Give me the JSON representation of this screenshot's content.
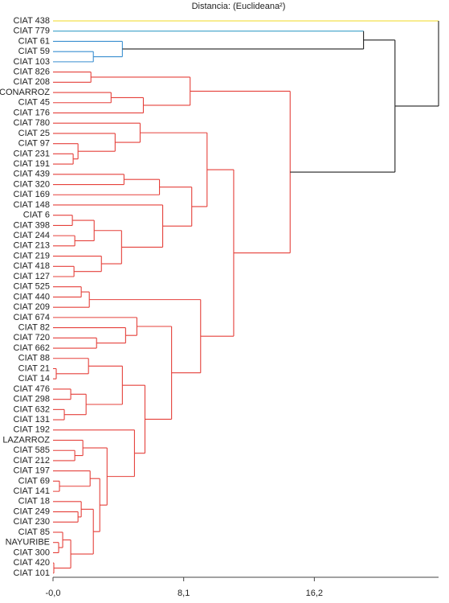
{
  "chart_data": {
    "type": "dendrogram",
    "title": "Distancia: (Euclideana²)",
    "leaves": [
      "CIAT 438",
      "CIAT 779",
      "CIAT 61",
      "CIAT 59",
      "CIAT 103",
      "CIAT 826",
      "CIAT 208",
      "CONARROZ",
      "CIAT 45",
      "CIAT 176",
      "CIAT 780",
      "CIAT 25",
      "CIAT 97",
      "CIAT 231",
      "CIAT 191",
      "CIAT 439",
      "CIAT 320",
      "CIAT 169",
      "CIAT 148",
      "CIAT 6",
      "CIAT 398",
      "CIAT 244",
      "CIAT 213",
      "CIAT 219",
      "CIAT 418",
      "CIAT 127",
      "CIAT 525",
      "CIAT 440",
      "CIAT 209",
      "CIAT 674",
      "CIAT 82",
      "CIAT 720",
      "CIAT 662",
      "CIAT 88",
      "CIAT 21",
      "CIAT 14",
      "CIAT 476",
      "CIAT 298",
      "CIAT 632",
      "CIAT 131",
      "CIAT 192",
      "LAZARROZ",
      "CIAT 585",
      "CIAT 212",
      "CIAT 197",
      "CIAT 69",
      "CIAT 141",
      "CIAT 18",
      "CIAT 249",
      "CIAT 230",
      "CIAT 85",
      "NAYURIBE",
      "CIAT 300",
      "CIAT 420",
      "CIAT 101"
    ],
    "merges": [
      {
        "left": 3,
        "right": 4,
        "height": 2.5,
        "color": "#3a8fd0"
      },
      {
        "left": 2,
        "right": 55,
        "height": 4.3,
        "color": "#3a8fd0"
      },
      {
        "left": 1,
        "right": 56,
        "height": 19.25,
        "color": "#222222",
        "left_color": "#3aa0c8"
      },
      {
        "left": 5,
        "right": 6,
        "height": 2.35,
        "color": "#e5413b"
      },
      {
        "left": 7,
        "right": 8,
        "height": 3.6,
        "color": "#e5413b"
      },
      {
        "left": 59,
        "right": 9,
        "height": 5.6,
        "color": "#e5413b"
      },
      {
        "left": 58,
        "right": 60,
        "height": 8.5,
        "color": "#e5413b"
      },
      {
        "left": 13,
        "right": 14,
        "height": 1.25,
        "color": "#e5413b"
      },
      {
        "left": 12,
        "right": 62,
        "height": 1.55,
        "color": "#e5413b"
      },
      {
        "left": 11,
        "right": 63,
        "height": 3.85,
        "color": "#e5413b"
      },
      {
        "left": 10,
        "right": 64,
        "height": 5.4,
        "color": "#e5413b"
      },
      {
        "left": 15,
        "right": 16,
        "height": 4.4,
        "color": "#e5413b"
      },
      {
        "left": 66,
        "right": 17,
        "height": 6.6,
        "color": "#e5413b"
      },
      {
        "left": 19,
        "right": 20,
        "height": 1.2,
        "color": "#e5413b"
      },
      {
        "left": 21,
        "right": 22,
        "height": 1.35,
        "color": "#e5413b"
      },
      {
        "left": 68,
        "right": 69,
        "height": 2.55,
        "color": "#e5413b"
      },
      {
        "left": 24,
        "right": 25,
        "height": 1.3,
        "color": "#e5413b"
      },
      {
        "left": 23,
        "right": 71,
        "height": 3.0,
        "color": "#e5413b"
      },
      {
        "left": 70,
        "right": 72,
        "height": 4.25,
        "color": "#e5413b"
      },
      {
        "left": 18,
        "right": 73,
        "height": 6.8,
        "color": "#e5413b"
      },
      {
        "left": 67,
        "right": 74,
        "height": 8.6,
        "color": "#e5413b"
      },
      {
        "left": 65,
        "right": 75,
        "height": 9.55,
        "color": "#e5413b"
      },
      {
        "left": 26,
        "right": 27,
        "height": 1.75,
        "color": "#e5413b"
      },
      {
        "left": 77,
        "right": 28,
        "height": 2.25,
        "color": "#e5413b"
      },
      {
        "left": 31,
        "right": 32,
        "height": 2.7,
        "color": "#e5413b"
      },
      {
        "left": 30,
        "right": 79,
        "height": 4.5,
        "color": "#e5413b"
      },
      {
        "left": 29,
        "right": 80,
        "height": 5.2,
        "color": "#e5413b"
      },
      {
        "left": 34,
        "right": 35,
        "height": 0.2,
        "color": "#e5413b"
      },
      {
        "left": 33,
        "right": 82,
        "height": 2.2,
        "color": "#e5413b"
      },
      {
        "left": 36,
        "right": 37,
        "height": 1.1,
        "color": "#e5413b"
      },
      {
        "left": 38,
        "right": 39,
        "height": 0.7,
        "color": "#e5413b"
      },
      {
        "left": 84,
        "right": 85,
        "height": 2.05,
        "color": "#e5413b"
      },
      {
        "left": 83,
        "right": 86,
        "height": 4.3,
        "color": "#e5413b"
      },
      {
        "left": 42,
        "right": 43,
        "height": 1.35,
        "color": "#e5413b"
      },
      {
        "left": 41,
        "right": 88,
        "height": 1.85,
        "color": "#e5413b"
      },
      {
        "left": 45,
        "right": 46,
        "height": 0.4,
        "color": "#e5413b"
      },
      {
        "left": 44,
        "right": 90,
        "height": 2.3,
        "color": "#e5413b"
      },
      {
        "left": 48,
        "right": 49,
        "height": 1.55,
        "color": "#e5413b"
      },
      {
        "left": 47,
        "right": 92,
        "height": 1.75,
        "color": "#e5413b"
      },
      {
        "left": 51,
        "right": 52,
        "height": 0.35,
        "color": "#e5413b"
      },
      {
        "left": 50,
        "right": 94,
        "height": 0.6,
        "color": "#e5413b"
      },
      {
        "left": 53,
        "right": 54,
        "height": 0.05,
        "color": "#e5413b"
      },
      {
        "left": 95,
        "right": 96,
        "height": 1.1,
        "color": "#e5413b"
      },
      {
        "left": 93,
        "right": 97,
        "height": 2.5,
        "color": "#e5413b"
      },
      {
        "left": 91,
        "right": 98,
        "height": 2.9,
        "color": "#e5413b"
      },
      {
        "left": 89,
        "right": 99,
        "height": 3.35,
        "color": "#e5413b"
      },
      {
        "left": 40,
        "right": 100,
        "height": 5.05,
        "color": "#e5413b"
      },
      {
        "left": 87,
        "right": 101,
        "height": 5.7,
        "color": "#e5413b"
      },
      {
        "left": 81,
        "right": 102,
        "height": 7.35,
        "color": "#e5413b"
      },
      {
        "left": 78,
        "right": 103,
        "height": 9.15,
        "color": "#e5413b"
      },
      {
        "left": 76,
        "right": 104,
        "height": 11.2,
        "color": "#e5413b"
      },
      {
        "left": 61,
        "right": 105,
        "height": 14.7,
        "color": "#e5413b"
      },
      {
        "left": 57,
        "right": 106,
        "height": 21.2,
        "color": "#222222"
      },
      {
        "left": 0,
        "right": 107,
        "height": 23.9,
        "color": "#222222",
        "left_color": "#f0d820"
      }
    ],
    "xlim": [
      0,
      23.9
    ],
    "xticks": [
      {
        "value": 0,
        "label": "-0,0"
      },
      {
        "value": 8.1,
        "label": "8,1"
      },
      {
        "value": 16.2,
        "label": "16,2"
      }
    ]
  }
}
